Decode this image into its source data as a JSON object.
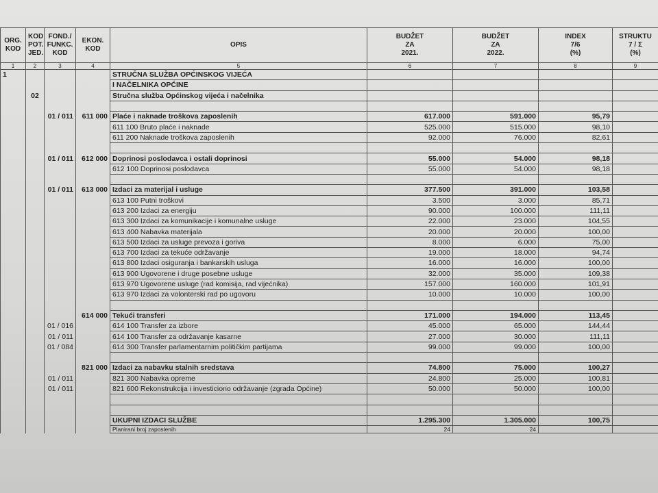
{
  "header": {
    "columns": [
      "ORG.\nKOD",
      "KOD\nPOT.\nJED.",
      "FOND./\nFUNKC.\nKOD",
      "EKON.\nKOD",
      "OPIS",
      "BUDŽET\nZA\n2021.",
      "BUDŽET\nZA\n2022.",
      "INDEX\n7/6\n(%)",
      "STRUKTU\n7 / Σ\n(%)"
    ],
    "numbers": [
      1,
      2,
      3,
      4,
      5,
      6,
      7,
      8,
      9
    ]
  },
  "table": {
    "rows": [
      {
        "org": "1",
        "opis": "STRUČNA SLUŽBA OPĆINSKOG VIJEĆA",
        "bold": true
      },
      {
        "opis": "I NAČELNIKA OPĆINE",
        "bold": true
      },
      {
        "pot": "02",
        "opis": "Stručna služba Općinskog vijeća  i načelnika",
        "bold": true
      },
      {},
      {
        "fond": "01 / 011",
        "ekon": "611 000",
        "opis": "Plaće i naknade troškova zaposlenih",
        "b21": "617.000",
        "b22": "591.000",
        "idx": "95,79",
        "bold": true
      },
      {
        "opis": "611 100 Bruto plaće i naknade",
        "b21": "525.000",
        "b22": "515.000",
        "idx": "98,10"
      },
      {
        "opis": "611 200 Naknade troškova zaposlenih",
        "b21": "92.000",
        "b22": "76.000",
        "idx": "82,61"
      },
      {},
      {
        "fond": "01 / 011",
        "ekon": "612 000",
        "opis": "Doprinosi poslodavca i ostali doprinosi",
        "b21": "55.000",
        "b22": "54.000",
        "idx": "98,18",
        "bold": true
      },
      {
        "opis": "612 100 Doprinosi poslodavca",
        "b21": "55.000",
        "b22": "54.000",
        "idx": "98,18"
      },
      {},
      {
        "fond": "01 / 011",
        "ekon": "613 000",
        "opis": "Izdaci za materijal i usluge",
        "b21": "377.500",
        "b22": "391.000",
        "idx": "103,58",
        "bold": true
      },
      {
        "opis": "613 100 Putni troškovi",
        "b21": "3.500",
        "b22": "3.000",
        "idx": "85,71"
      },
      {
        "opis": "613 200 Izdaci za energiju",
        "b21": "90.000",
        "b22": "100.000",
        "idx": "111,11"
      },
      {
        "opis": "613 300 Izdaci za komunikacije i komunalne usluge",
        "b21": "22.000",
        "b22": "23.000",
        "idx": "104,55"
      },
      {
        "opis": "613 400 Nabavka materijala",
        "b21": "20.000",
        "b22": "20.000",
        "idx": "100,00"
      },
      {
        "opis": "613 500 Izdaci za usluge prevoza i goriva",
        "b21": "8.000",
        "b22": "6.000",
        "idx": "75,00"
      },
      {
        "opis": "613 700 Izdaci za tekuće održavanje",
        "b21": "19.000",
        "b22": "18.000",
        "idx": "94,74"
      },
      {
        "opis": "613 800 Izdaci osiguranja i bankarskih usluga",
        "b21": "16.000",
        "b22": "16.000",
        "idx": "100,00"
      },
      {
        "opis": "613 900 Ugovorene i druge posebne usluge",
        "b21": "32.000",
        "b22": "35.000",
        "idx": "109,38"
      },
      {
        "opis": "613 970 Ugovorene usluge (rad komisija, rad vijećnika)",
        "b21": "157.000",
        "b22": "160.000",
        "idx": "101,91"
      },
      {
        "opis": "613 970 Izdaci za volonterski rad po ugovoru",
        "b21": "10.000",
        "b22": "10.000",
        "idx": "100,00"
      },
      {},
      {
        "ekon": "614 000",
        "opis": "Tekući transferi",
        "b21": "171.000",
        "b22": "194.000",
        "idx": "113,45",
        "bold": true
      },
      {
        "fond": "01 / 016",
        "opis": "614 100 Transfer za izbore",
        "b21": "45.000",
        "b22": "65.000",
        "idx": "144,44"
      },
      {
        "fond": "01 / 011",
        "opis": "614 100 Transfer za održavanje kasarne",
        "b21": "27.000",
        "b22": "30.000",
        "idx": "111,11"
      },
      {
        "fond": "01 / 084",
        "opis": "614 300 Transfer parlamentarnim političkim partijama",
        "b21": "99.000",
        "b22": "99.000",
        "idx": "100,00"
      },
      {},
      {
        "ekon": "821 000",
        "opis": "Izdaci za nabavku stalnih sredstava",
        "b21": "74.800",
        "b22": "75.000",
        "idx": "100,27",
        "bold": true
      },
      {
        "fond": "01 / 011",
        "opis": "821 300 Nabavka opreme",
        "b21": "24.800",
        "b22": "25.000",
        "idx": "100,81"
      },
      {
        "fond": "01 / 011",
        "opis": "821 600 Rekonstrukcija i investiciono održavanje (zgrada Općine)",
        "b21": "50.000",
        "b22": "50.000",
        "idx": "100,00"
      },
      {},
      {},
      {
        "opis": "UKUPNI IZDACI SLUŽBE",
        "b21": "1.295.300",
        "b22": "1.305.000",
        "idx": "100,75",
        "bold": true
      },
      {
        "opis": "Planirani broj zaposlenih",
        "b21": "24",
        "b22": "24",
        "small": true
      }
    ]
  }
}
